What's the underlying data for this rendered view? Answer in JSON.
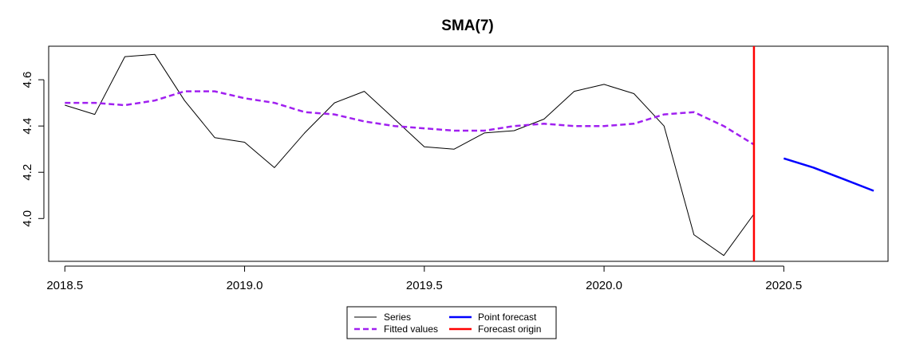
{
  "chart_data": {
    "type": "line",
    "title": "SMA(7)",
    "xlabel": "",
    "ylabel": "",
    "xlim": [
      2018.455,
      2020.79
    ],
    "ylim": [
      3.815,
      4.745
    ],
    "x_ticks": [
      2018.5,
      2019.0,
      2019.5,
      2020.0,
      2020.5
    ],
    "x_tick_labels": [
      "2018.5",
      "2019.0",
      "2019.5",
      "2020.0",
      "2020.5"
    ],
    "y_ticks": [
      4.0,
      4.2,
      4.4,
      4.6
    ],
    "y_tick_labels": [
      "4.0",
      "4.2",
      "4.4",
      "4.6"
    ],
    "grid": false,
    "legend_position": "bottom-center",
    "legend": [
      {
        "label": "Series",
        "series": "series"
      },
      {
        "label": "Fitted values",
        "series": "fitted"
      },
      {
        "label": "Point forecast",
        "series": "forecast"
      },
      {
        "label": "Forecast origin",
        "series": "origin"
      }
    ],
    "series": [
      {
        "id": "series",
        "color": "#000000",
        "style": "solid",
        "x": [
          2018.5,
          2018.583,
          2018.667,
          2018.75,
          2018.833,
          2018.917,
          2019.0,
          2019.083,
          2019.167,
          2019.25,
          2019.333,
          2019.417,
          2019.5,
          2019.583,
          2019.667,
          2019.75,
          2019.833,
          2019.917,
          2020.0,
          2020.083,
          2020.167,
          2020.25,
          2020.333,
          2020.417
        ],
        "values": [
          4.49,
          4.45,
          4.7,
          4.71,
          4.51,
          4.35,
          4.33,
          4.22,
          4.37,
          4.5,
          4.55,
          4.43,
          4.31,
          4.3,
          4.37,
          4.38,
          4.43,
          4.55,
          4.58,
          4.54,
          4.4,
          3.93,
          3.84,
          4.02
        ]
      },
      {
        "id": "fitted",
        "color": "#a020f0",
        "style": "dashed",
        "x": [
          2018.5,
          2018.583,
          2018.667,
          2018.75,
          2018.833,
          2018.917,
          2019.0,
          2019.083,
          2019.167,
          2019.25,
          2019.333,
          2019.417,
          2019.5,
          2019.583,
          2019.667,
          2019.75,
          2019.833,
          2019.917,
          2020.0,
          2020.083,
          2020.167,
          2020.25,
          2020.333,
          2020.417
        ],
        "values": [
          4.5,
          4.5,
          4.49,
          4.51,
          4.55,
          4.55,
          4.52,
          4.5,
          4.46,
          4.45,
          4.42,
          4.4,
          4.39,
          4.38,
          4.38,
          4.4,
          4.41,
          4.4,
          4.4,
          4.41,
          4.45,
          4.46,
          4.4,
          4.32
        ]
      },
      {
        "id": "forecast",
        "color": "#0000ff",
        "style": "solid",
        "x": [
          2020.5,
          2020.583,
          2020.667,
          2020.75
        ],
        "values": [
          4.26,
          4.22,
          4.17,
          4.12
        ]
      }
    ],
    "forecast_origin": {
      "x": 2020.417,
      "color": "#ff0000"
    }
  }
}
